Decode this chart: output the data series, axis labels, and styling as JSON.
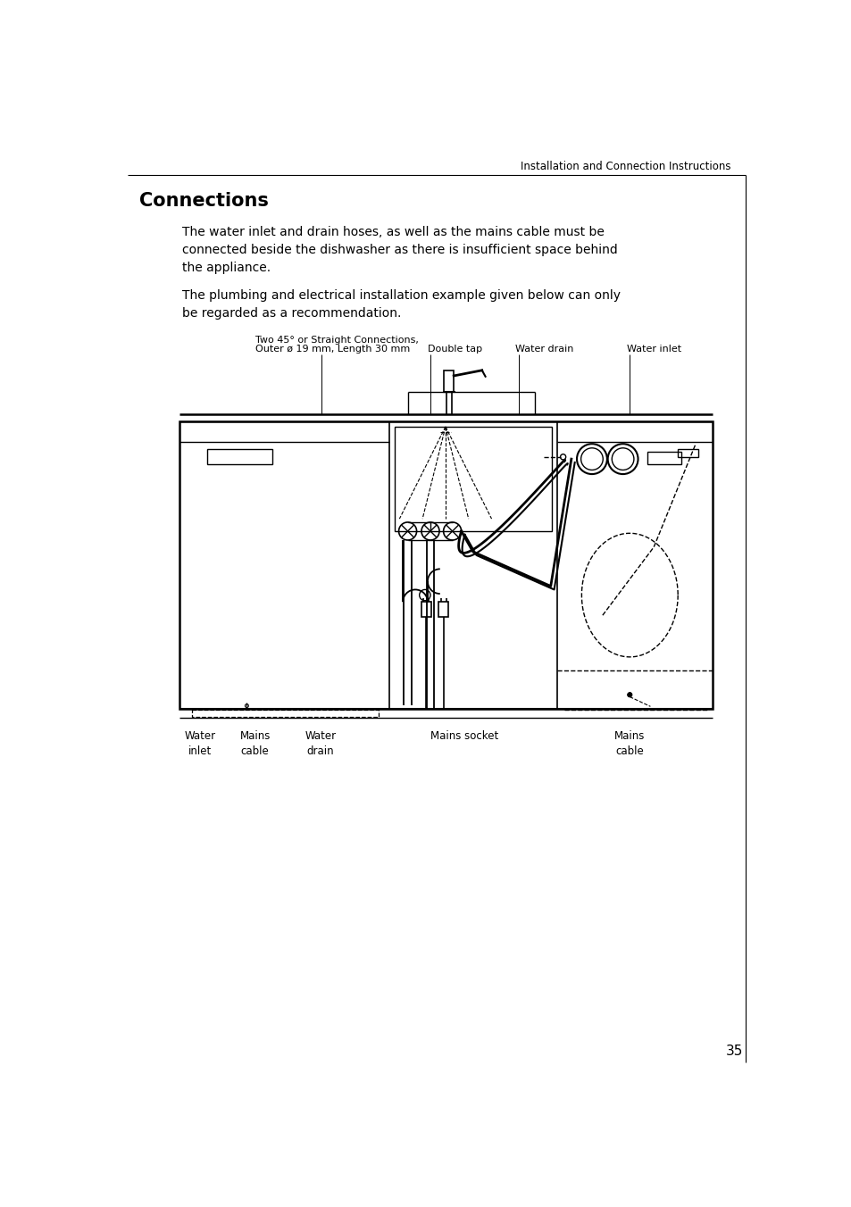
{
  "page_header": "Installation and Connection Instructions",
  "section_title": "Connections",
  "paragraph1": "The water inlet and drain hoses, as well as the mains cable must be\nconnected beside the dishwasher as there is insufficient space behind\nthe appliance.",
  "paragraph2": "The plumbing and electrical installation example given below can only\nbe regarded as a recommendation.",
  "label_top_left_line1": "Two 45° or Straight Connections,",
  "label_top_left_line2": "Outer ø 19 mm, Length 30 mm",
  "label_double_tap": "Double tap",
  "label_water_drain_top": "Water drain",
  "label_water_inlet_top": "Water inlet",
  "label_water_inlet_bottom": "Water\ninlet",
  "label_mains_cable_left": "Mains\ncable",
  "label_water_drain_bottom": "Water\ndrain",
  "label_mains_socket": "Mains socket",
  "label_mains_cable_right": "Mains\ncable",
  "page_number": "35",
  "bg_color": "#ffffff",
  "text_color": "#000000"
}
